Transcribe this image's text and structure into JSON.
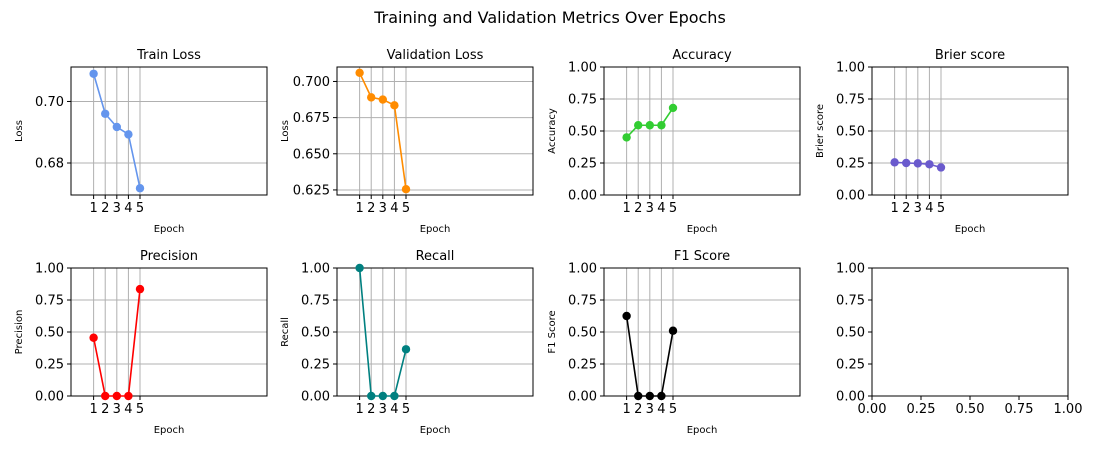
{
  "figure_title": "Training and Validation Metrics Over Epochs",
  "chart_data": [
    {
      "type": "line",
      "title": "Train Loss",
      "xlabel": "Epoch",
      "ylabel": "Loss",
      "color": "#6495ED",
      "x": [
        1,
        2,
        3,
        4,
        5
      ],
      "values": [
        0.709,
        0.696,
        0.6917,
        0.6893,
        0.6718
      ],
      "xlim": [
        -0.95,
        15.95
      ],
      "ylim": [
        0.6696,
        0.7112
      ],
      "xticks": [
        1,
        2,
        3,
        4,
        5
      ],
      "yticks": [
        0.68,
        0.7
      ],
      "ytick_labels": [
        "0.68",
        "0.70"
      ],
      "grid": true
    },
    {
      "type": "line",
      "title": "Validation Loss",
      "xlabel": "Epoch",
      "ylabel": "Loss",
      "color": "#FF8C00",
      "x": [
        1,
        2,
        3,
        4,
        5
      ],
      "values": [
        0.706,
        0.689,
        0.6875,
        0.6835,
        0.6255
      ],
      "xlim": [
        -0.95,
        15.95
      ],
      "ylim": [
        0.6215,
        0.71
      ],
      "xticks": [
        1,
        2,
        3,
        4,
        5
      ],
      "yticks": [
        0.625,
        0.65,
        0.675,
        0.7
      ],
      "ytick_labels": [
        "0.625",
        "0.650",
        "0.675",
        "0.700"
      ],
      "grid": true
    },
    {
      "type": "line",
      "title": "Accuracy",
      "xlabel": "Epoch",
      "ylabel": "Accuracy",
      "color": "#32CD32",
      "x": [
        1,
        2,
        3,
        4,
        5
      ],
      "values": [
        0.45,
        0.545,
        0.545,
        0.545,
        0.68
      ],
      "xlim": [
        -0.95,
        15.95
      ],
      "ylim": [
        0,
        1
      ],
      "xticks": [
        1,
        2,
        3,
        4,
        5
      ],
      "yticks": [
        0,
        0.25,
        0.5,
        0.75,
        1.0
      ],
      "ytick_labels": [
        "0.00",
        "0.25",
        "0.50",
        "0.75",
        "1.00"
      ],
      "grid": true
    },
    {
      "type": "line",
      "title": "Brier score",
      "xlabel": "Epoch",
      "ylabel": "Brier score",
      "color": "#6A5ACD",
      "x": [
        1,
        2,
        3,
        4,
        5
      ],
      "values": [
        0.255,
        0.25,
        0.247,
        0.24,
        0.215
      ],
      "xlim": [
        -0.95,
        15.95
      ],
      "ylim": [
        0,
        1
      ],
      "xticks": [
        1,
        2,
        3,
        4,
        5
      ],
      "yticks": [
        0,
        0.25,
        0.5,
        0.75,
        1.0
      ],
      "ytick_labels": [
        "0.00",
        "0.25",
        "0.50",
        "0.75",
        "1.00"
      ],
      "grid": true
    },
    {
      "type": "line",
      "title": "Precision",
      "xlabel": "Epoch",
      "ylabel": "Precision",
      "color": "#FF0000",
      "x": [
        1,
        2,
        3,
        4,
        5
      ],
      "values": [
        0.455,
        0.0,
        0.0,
        0.0,
        0.835
      ],
      "xlim": [
        -0.95,
        15.95
      ],
      "ylim": [
        0,
        1
      ],
      "xticks": [
        1,
        2,
        3,
        4,
        5
      ],
      "yticks": [
        0,
        0.25,
        0.5,
        0.75,
        1.0
      ],
      "ytick_labels": [
        "0.00",
        "0.25",
        "0.50",
        "0.75",
        "1.00"
      ],
      "grid": true
    },
    {
      "type": "line",
      "title": "Recall",
      "xlabel": "Epoch",
      "ylabel": "Recall",
      "color": "#008080",
      "x": [
        1,
        2,
        3,
        4,
        5
      ],
      "values": [
        1.0,
        0.0,
        0.0,
        0.0,
        0.365
      ],
      "xlim": [
        -0.95,
        15.95
      ],
      "ylim": [
        0,
        1
      ],
      "xticks": [
        1,
        2,
        3,
        4,
        5
      ],
      "yticks": [
        0,
        0.25,
        0.5,
        0.75,
        1.0
      ],
      "ytick_labels": [
        "0.00",
        "0.25",
        "0.50",
        "0.75",
        "1.00"
      ],
      "grid": true
    },
    {
      "type": "line",
      "title": "F1 Score",
      "xlabel": "Epoch",
      "ylabel": "F1 Score",
      "color": "#000000",
      "x": [
        1,
        2,
        3,
        4,
        5
      ],
      "values": [
        0.625,
        0.0,
        0.0,
        0.0,
        0.51
      ],
      "xlim": [
        -0.95,
        15.95
      ],
      "ylim": [
        0,
        1
      ],
      "xticks": [
        1,
        2,
        3,
        4,
        5
      ],
      "yticks": [
        0,
        0.25,
        0.5,
        0.75,
        1.0
      ],
      "ytick_labels": [
        "0.00",
        "0.25",
        "0.50",
        "0.75",
        "1.00"
      ],
      "grid": true
    },
    {
      "type": "line",
      "title": "",
      "xlabel": "",
      "ylabel": "",
      "color": "#000000",
      "x": [],
      "values": [],
      "xlim": [
        0,
        1
      ],
      "ylim": [
        0,
        1
      ],
      "xticks": [
        0,
        0.25,
        0.5,
        0.75,
        1.0
      ],
      "xtick_labels": [
        "0.00",
        "0.25",
        "0.50",
        "0.75",
        "1.00"
      ],
      "yticks": [
        0,
        0.25,
        0.5,
        0.75,
        1.0
      ],
      "ytick_labels": [
        "0.00",
        "0.25",
        "0.50",
        "0.75",
        "1.00"
      ],
      "grid": false
    }
  ]
}
